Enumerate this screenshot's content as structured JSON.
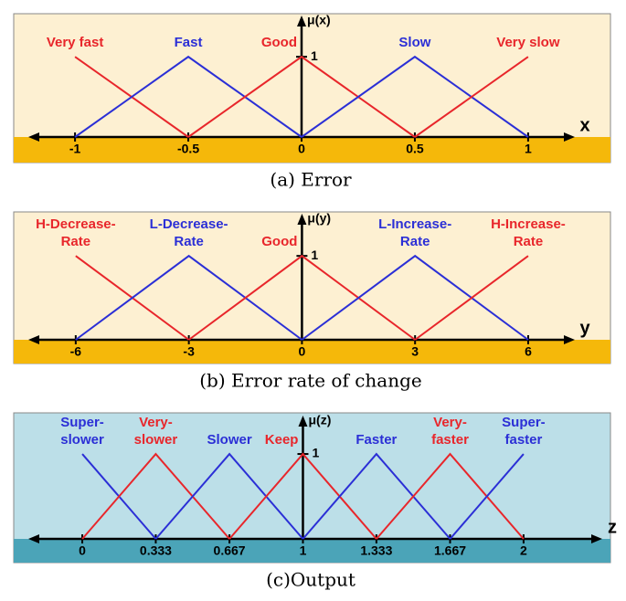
{
  "chart_data": [
    {
      "type": "line",
      "title": "(a) Error",
      "y_label": "μ(x)",
      "x_label": "x",
      "xlim": [
        -1.19,
        1.19
      ],
      "ylim": [
        0,
        1.48
      ],
      "xticks": [
        -1,
        -0.5,
        0,
        0.5,
        1
      ],
      "yticks": [
        1
      ],
      "background": "#fdf0d2",
      "band_color": "#f5b80a",
      "series": [
        {
          "name": "Very fast",
          "color": "#e8262b",
          "x": [
            -1,
            -0.5
          ],
          "values": [
            1,
            0
          ]
        },
        {
          "name": "Fast",
          "color": "#2b2fd6",
          "x": [
            -1,
            -0.5,
            0
          ],
          "values": [
            0,
            1,
            0
          ]
        },
        {
          "name": "Good",
          "color": "#e8262b",
          "x": [
            -0.5,
            0,
            0.5
          ],
          "values": [
            0,
            1,
            0
          ]
        },
        {
          "name": "Slow",
          "color": "#2b2fd6",
          "x": [
            0,
            0.5,
            1
          ],
          "values": [
            0,
            1,
            0
          ]
        },
        {
          "name": "Very slow",
          "color": "#e8262b",
          "x": [
            0.5,
            1
          ],
          "values": [
            0,
            1
          ]
        }
      ]
    },
    {
      "type": "line",
      "title": "(b) Error rate of change",
      "y_label": "μ(y)",
      "x_label": "y",
      "xlim": [
        -7.16,
        7.14
      ],
      "ylim": [
        0,
        1.47
      ],
      "xticks": [
        -6,
        -3,
        0,
        3,
        6
      ],
      "yticks": [
        1
      ],
      "background": "#fdf0d2",
      "band_color": "#f5b80a",
      "series": [
        {
          "name": "H-Decrease-\nRate",
          "color": "#e8262b",
          "x": [
            -6,
            -3
          ],
          "values": [
            1,
            0
          ]
        },
        {
          "name": "L-Decrease-\nRate",
          "color": "#2b2fd6",
          "x": [
            -6,
            -3,
            0
          ],
          "values": [
            0,
            1,
            0
          ]
        },
        {
          "name": "Good",
          "color": "#e8262b",
          "x": [
            -3,
            0,
            3
          ],
          "values": [
            0,
            1,
            0
          ]
        },
        {
          "name": "L-Increase-\nRate",
          "color": "#2b2fd6",
          "x": [
            0,
            3,
            6
          ],
          "values": [
            0,
            1,
            0
          ]
        },
        {
          "name": "H-Increase-\nRate",
          "color": "#e8262b",
          "x": [
            3,
            6
          ],
          "values": [
            0,
            1
          ]
        }
      ]
    },
    {
      "type": "line",
      "title": "(c)Output",
      "y_label": "μ(z)",
      "x_label": "z",
      "xlim": [
        -0.228,
        2.34
      ],
      "ylim": [
        0,
        1.42
      ],
      "xticks": [
        0,
        0.333,
        0.667,
        1,
        1.333,
        1.667,
        2
      ],
      "yticks": [
        1
      ],
      "background": "#bcdfe8",
      "band_color": "#4ba4b8",
      "series": [
        {
          "name": "Super-\nslower",
          "color": "#2b2fd6",
          "x": [
            0,
            0.333
          ],
          "values": [
            1,
            0
          ]
        },
        {
          "name": "Very-\nslower",
          "color": "#e8262b",
          "x": [
            0,
            0.333,
            0.667
          ],
          "values": [
            0,
            1,
            0
          ]
        },
        {
          "name": "Slower",
          "color": "#2b2fd6",
          "x": [
            0.333,
            0.667,
            1
          ],
          "values": [
            0,
            1,
            0
          ]
        },
        {
          "name": "Keep",
          "color": "#e8262b",
          "x": [
            0.667,
            1,
            1.333
          ],
          "values": [
            0,
            1,
            0
          ]
        },
        {
          "name": "Faster",
          "color": "#2b2fd6",
          "x": [
            1,
            1.333,
            1.667
          ],
          "values": [
            0,
            1,
            0
          ]
        },
        {
          "name": "Very-\nfaster",
          "color": "#e8262b",
          "x": [
            1.333,
            1.667,
            2
          ],
          "values": [
            0,
            1,
            0
          ]
        },
        {
          "name": "Super-\nfaster",
          "color": "#2b2fd6",
          "x": [
            1.667,
            2
          ],
          "values": [
            0,
            1
          ]
        }
      ]
    }
  ]
}
